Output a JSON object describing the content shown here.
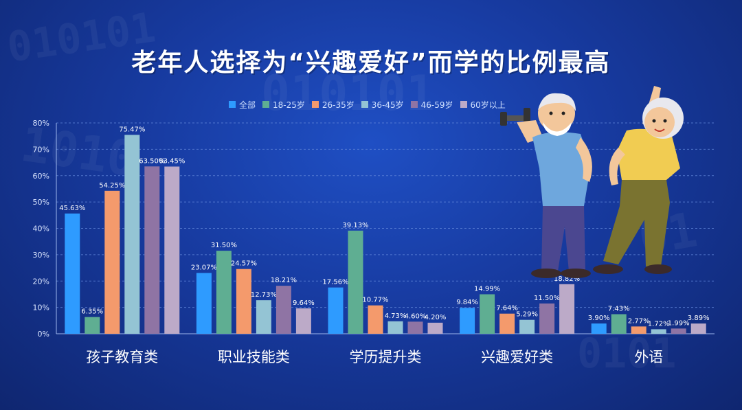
{
  "title": "老年人选择为“兴趣爱好”而学的比例最高",
  "colors": {
    "series": [
      "#2e9bff",
      "#5fae92",
      "#f49a6c",
      "#94c4d4",
      "#8f74a4",
      "#bcaac8"
    ],
    "grid": "#5f84d8",
    "axis_text": "#dbe6ff",
    "category_text": "#ffffff"
  },
  "chart_data": {
    "type": "bar",
    "title": "老年人选择为“兴趣爱好”而学的比例最高",
    "xlabel": "",
    "ylabel": "",
    "ylim": [
      0,
      80
    ],
    "yticks": [
      "0%",
      "10%",
      "20%",
      "30%",
      "40%",
      "50%",
      "60%",
      "70%",
      "80%"
    ],
    "grid": true,
    "legend_position": "top",
    "categories": [
      "孩子教育类",
      "职业技能类",
      "学历提升类",
      "兴趣爱好类",
      "外语"
    ],
    "series": [
      {
        "name": "全部",
        "values": [
          45.63,
          23.07,
          17.56,
          9.84,
          3.9
        ],
        "labels": [
          "45.63%",
          "23.07%",
          "17.56%",
          "9.84%",
          "3.90%"
        ]
      },
      {
        "name": "18-25岁",
        "values": [
          6.35,
          31.5,
          39.13,
          14.99,
          7.43
        ],
        "labels": [
          "6.35%",
          "31.50%",
          "39.13%",
          "14.99%",
          "7.43%"
        ]
      },
      {
        "name": "26-35岁",
        "values": [
          54.25,
          24.57,
          10.77,
          7.64,
          2.77
        ],
        "labels": [
          "54.25%",
          "24.57%",
          "10.77%",
          "7.64%",
          "2.77%"
        ]
      },
      {
        "name": "36-45岁",
        "values": [
          75.47,
          12.73,
          4.73,
          5.29,
          1.72
        ],
        "labels": [
          "75.47%",
          "12.73%",
          "4.73%",
          "5.29%",
          "1.72%"
        ]
      },
      {
        "name": "46-59岁",
        "values": [
          63.5,
          18.21,
          4.6,
          11.5,
          1.99
        ],
        "labels": [
          "63.50%",
          "18.21%",
          "4.60%",
          "11.50%",
          "1.99%"
        ]
      },
      {
        "name": "60岁以上",
        "values": [
          63.45,
          9.64,
          4.2,
          18.82,
          3.89
        ],
        "labels": [
          "63.45%",
          "9.64%",
          "4.20%",
          "18.82%",
          "3.89%"
        ]
      }
    ]
  },
  "illustration": {
    "icons": [
      "elderly-man-dumbbell-icon",
      "elderly-woman-stretching-icon"
    ]
  }
}
